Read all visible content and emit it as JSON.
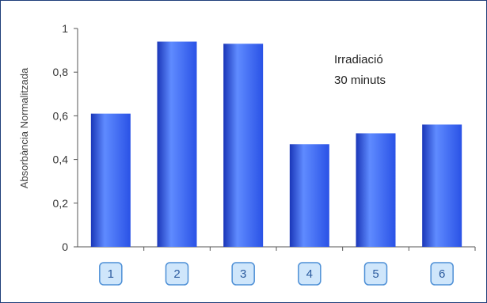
{
  "chart_data": {
    "type": "bar",
    "categories": [
      "1",
      "2",
      "3",
      "4",
      "5",
      "6"
    ],
    "values": [
      0.61,
      0.94,
      0.93,
      0.47,
      0.52,
      0.56
    ],
    "ylabel": "Absorbància Normalitzada",
    "ylim": [
      0,
      1
    ],
    "yticks": [
      0,
      0.2,
      0.4,
      0.6,
      0.8,
      1
    ],
    "ytick_labels": [
      "0",
      "0,2",
      "0,4",
      "0,6",
      "0,8",
      "1"
    ],
    "annotation": [
      "Irradiació",
      "30 minuts"
    ],
    "grid": false,
    "legend": "none"
  },
  "colors": {
    "bar": "#2a52e6",
    "bar_light": "#5f8bff",
    "bar_dark": "#1a36b8",
    "frame": "#1f3f7a",
    "category_box_fill": "#cfe6fb",
    "category_box_stroke": "#4d8fd6"
  }
}
